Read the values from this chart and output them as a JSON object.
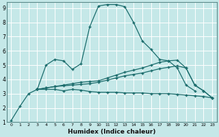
{
  "xlabel": "Humidex (Indice chaleur)",
  "bg_color": "#c5e8e8",
  "grid_color": "#ffffff",
  "line_color": "#1a6b6b",
  "xlim": [
    -0.5,
    23.5
  ],
  "ylim": [
    1,
    9.4
  ],
  "xticks": [
    0,
    1,
    2,
    3,
    4,
    5,
    6,
    7,
    8,
    9,
    10,
    11,
    12,
    13,
    14,
    15,
    16,
    17,
    18,
    19,
    20,
    21,
    22,
    23
  ],
  "yticks": [
    1,
    2,
    3,
    4,
    5,
    6,
    7,
    8,
    9
  ],
  "line1": {
    "x": [
      0,
      1,
      2,
      3,
      4,
      5,
      6,
      7,
      8,
      9,
      10,
      11,
      12,
      13,
      14,
      15,
      16,
      17,
      18,
      19,
      20,
      21
    ],
    "y": [
      1.1,
      2.1,
      3.0,
      3.3,
      5.0,
      5.4,
      5.3,
      4.7,
      5.1,
      7.7,
      9.15,
      9.25,
      9.25,
      9.1,
      8.0,
      6.7,
      6.1,
      5.4,
      5.3,
      4.8,
      3.6,
      3.2
    ]
  },
  "line2": {
    "x": [
      3,
      4,
      5,
      6,
      7,
      8,
      9,
      10,
      11,
      12,
      13,
      14,
      15,
      16,
      17,
      18,
      19,
      20,
      21,
      22,
      23
    ],
    "y": [
      3.3,
      3.3,
      3.3,
      3.2,
      3.3,
      3.25,
      3.15,
      3.1,
      3.1,
      3.1,
      3.05,
      3.05,
      3.05,
      3.0,
      3.0,
      3.0,
      2.95,
      2.9,
      2.85,
      2.8,
      2.7
    ]
  },
  "line3": {
    "x": [
      3,
      4,
      5,
      6,
      7,
      8,
      9,
      10,
      11,
      12,
      13,
      14,
      15,
      16,
      17,
      18,
      19,
      20,
      21,
      22,
      23
    ],
    "y": [
      3.3,
      3.4,
      3.5,
      3.55,
      3.6,
      3.65,
      3.7,
      3.8,
      3.95,
      4.1,
      4.25,
      4.35,
      4.45,
      4.6,
      4.75,
      4.85,
      4.95,
      4.8,
      3.6,
      3.2,
      2.7
    ]
  },
  "line4": {
    "x": [
      3,
      4,
      5,
      6,
      7,
      8,
      9,
      10,
      11,
      12,
      13,
      14,
      15,
      16,
      17,
      18,
      19,
      20,
      21,
      22,
      23
    ],
    "y": [
      3.3,
      3.4,
      3.5,
      3.6,
      3.7,
      3.8,
      3.85,
      3.9,
      4.1,
      4.3,
      4.5,
      4.65,
      4.8,
      5.0,
      5.2,
      5.3,
      5.35,
      4.8,
      3.6,
      3.2,
      2.7
    ]
  }
}
